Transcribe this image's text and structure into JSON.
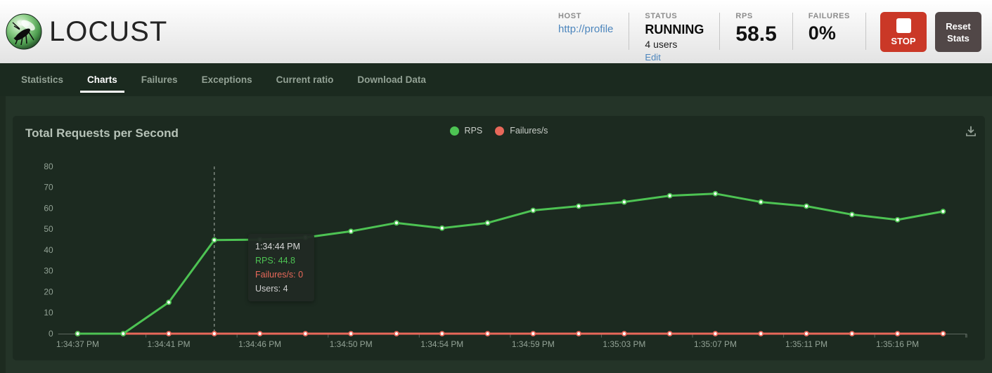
{
  "header": {
    "logo_text": "LOCUST",
    "host": {
      "label": "HOST",
      "value": "http://profile"
    },
    "status": {
      "label": "STATUS",
      "value": "RUNNING",
      "users": "4 users",
      "edit_label": "Edit"
    },
    "rps": {
      "label": "RPS",
      "value": "58.5"
    },
    "failures": {
      "label": "FAILURES",
      "value": "0%"
    },
    "stop_button_label": "STOP",
    "reset_button_label": "Reset Stats"
  },
  "nav": {
    "tabs": [
      {
        "label": "Statistics",
        "active": false
      },
      {
        "label": "Charts",
        "active": true
      },
      {
        "label": "Failures",
        "active": false
      },
      {
        "label": "Exceptions",
        "active": false
      },
      {
        "label": "Current ratio",
        "active": false
      },
      {
        "label": "Download Data",
        "active": false
      }
    ]
  },
  "chart": {
    "title": "Total Requests per Second",
    "legend": [
      {
        "label": "RPS",
        "color": "#4dc353"
      },
      {
        "label": "Failures/s",
        "color": "#e8685a"
      }
    ],
    "tooltip": {
      "time": "1:34:44 PM",
      "rps_line": "RPS: 44.8",
      "failures_line": "Failures/s: 0",
      "users_line": "Users: 4",
      "point_index": 3
    }
  },
  "chart_data": {
    "type": "line",
    "title": "Total Requests per Second",
    "x_tick_labels": [
      "1:34:37 PM",
      "1:34:41 PM",
      "1:34:46 PM",
      "1:34:50 PM",
      "1:34:54 PM",
      "1:34:59 PM",
      "1:35:03 PM",
      "1:35:07 PM",
      "1:35:11 PM",
      "1:35:16 PM"
    ],
    "x_labels_every_n_points": 2,
    "yticks": [
      0,
      10,
      20,
      30,
      40,
      50,
      60,
      70,
      80
    ],
    "ylim": [
      0,
      80
    ],
    "grid": false,
    "legend_position": "top-center",
    "series": [
      {
        "name": "RPS",
        "color": "#4dc353",
        "values": [
          0,
          0,
          15,
          44.8,
          45,
          46,
          49,
          53,
          50.5,
          53,
          59,
          61,
          63,
          66,
          67,
          63,
          61,
          57,
          54.5,
          58.5
        ]
      },
      {
        "name": "Failures/s",
        "color": "#e8685a",
        "values": [
          0,
          0,
          0,
          0,
          0,
          0,
          0,
          0,
          0,
          0,
          0,
          0,
          0,
          0,
          0,
          0,
          0,
          0,
          0,
          0
        ]
      }
    ],
    "hover": {
      "point_index": 3,
      "time": "1:34:44 PM",
      "rps": 44.8,
      "failures_per_s": 0,
      "users": 4
    }
  },
  "colors": {
    "page_bg": "#243428",
    "panel_bg": "#1c2a20",
    "nav_bg": "#1b2a1f",
    "accent_green": "#4dc353",
    "accent_red": "#e8685a",
    "stop_red": "#ca3827",
    "reset_grey": "#514747",
    "link_blue": "#4d86bd"
  }
}
